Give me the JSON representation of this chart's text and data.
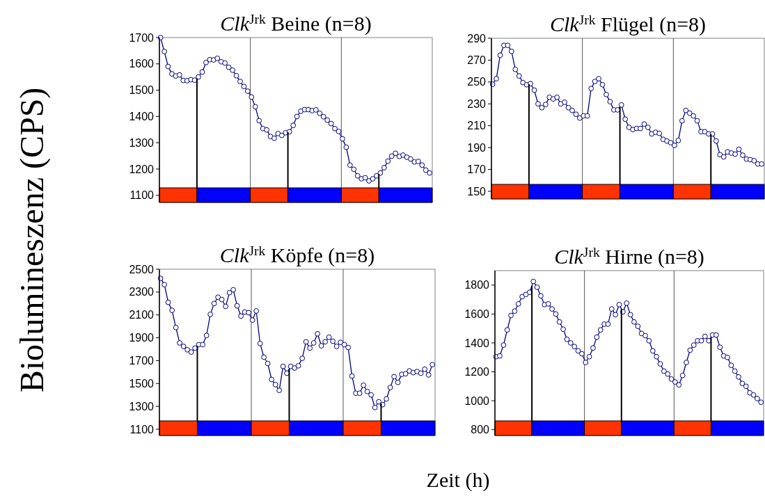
{
  "chart_data": [
    {
      "type": "line",
      "title": "Clk$^{Jrk}$ Beine (n=8)",
      "ylabel": "Biolumineszenz (CPS)",
      "categories": [
        null,
        null,
        null,
        null,
        null,
        null,
        null,
        null,
        null,
        null,
        null,
        null,
        null,
        null,
        null,
        null,
        null,
        null,
        null,
        null,
        null,
        null,
        null,
        null,
        null,
        null,
        null,
        null,
        null,
        null,
        null,
        null,
        null,
        null,
        null,
        null,
        null,
        null,
        null,
        null,
        null,
        null,
        null,
        null,
        null,
        null,
        null,
        null,
        null,
        null,
        null,
        null,
        null,
        null,
        null,
        null,
        null,
        null,
        null,
        null,
        null,
        null,
        null,
        null,
        null,
        null,
        null,
        null,
        null,
        null,
        null,
        null
      ],
      "series": [
        {
          "color": "#000080",
          "values": [
            1700,
            1647,
            1590,
            1562,
            1554,
            1558,
            1537,
            1536,
            1540,
            1538,
            1550,
            1569,
            1605,
            1616,
            1615,
            1621,
            1608,
            1603,
            1587,
            1576,
            1555,
            1533,
            1514,
            1496,
            1474,
            1437,
            1384,
            1354,
            1349,
            1324,
            1317,
            1335,
            1328,
            1338,
            1342,
            1366,
            1400,
            1420,
            1426,
            1426,
            1422,
            1425,
            1412,
            1399,
            1386,
            1373,
            1354,
            1343,
            1315,
            1283,
            1215,
            1199,
            1174,
            1163,
            1167,
            1155,
            1163,
            1174,
            1185,
            1205,
            1230,
            1249,
            1260,
            1248,
            1253,
            1245,
            1238,
            1227,
            1229,
            1215,
            1196,
            1185
          ]
        }
      ],
      "ylim": [
        1073,
        1700
      ],
      "yticks": [
        1100,
        1200,
        1300,
        1400,
        1500,
        1600,
        1700
      ],
      "marker": "circle",
      "tick_labels": "y"
    },
    {
      "type": "line",
      "title": "Clk$^{Jrk}$ Flügel (n=8)",
      "categories": [
        null,
        null,
        null,
        null,
        null,
        null,
        null,
        null,
        null,
        null,
        null,
        null,
        null,
        null,
        null,
        null,
        null,
        null,
        null,
        null,
        null,
        null,
        null,
        null,
        null,
        null,
        null,
        null,
        null,
        null,
        null,
        null,
        null,
        null,
        null,
        null,
        null,
        null,
        null,
        null,
        null,
        null,
        null,
        null,
        null,
        null,
        null,
        null,
        null,
        null,
        null,
        null,
        null,
        null,
        null,
        null,
        null,
        null,
        null,
        null,
        null,
        null,
        null,
        null,
        null,
        null,
        null,
        null,
        null,
        null,
        null,
        null
      ],
      "series": [
        {
          "color": "#000080",
          "values": [
            248,
            253,
            274.5,
            283.5,
            283.5,
            278,
            261.5,
            255.5,
            249.5,
            247.5,
            248.5,
            242.5,
            230,
            226.5,
            229.5,
            236,
            234.5,
            236,
            230,
            231.5,
            226.5,
            224,
            220.5,
            217,
            219,
            219,
            244,
            250.5,
            253,
            247.5,
            238.5,
            232,
            224.5,
            224.5,
            229,
            216,
            208.5,
            206.5,
            207.5,
            207.5,
            211.5,
            208.5,
            202.5,
            204,
            203,
            197.5,
            196,
            194.5,
            192,
            196.5,
            214.5,
            224,
            221.5,
            219,
            214.5,
            204.5,
            204.5,
            202.5,
            202.5,
            196,
            183.5,
            181.5,
            186,
            185,
            184,
            188.5,
            183,
            179.5,
            179,
            178,
            175,
            175
          ]
        }
      ],
      "ylim": [
        143,
        290
      ],
      "yticks": [
        150,
        170,
        190,
        210,
        230,
        250,
        270,
        290
      ],
      "marker": "circle",
      "tick_labels": "y"
    },
    {
      "type": "line",
      "title": "Clk$^{Jrk}$ Köpfe (n=8)",
      "xlabel": "Zeit (h)",
      "categories": [
        null,
        null,
        null,
        null,
        null,
        null,
        null,
        null,
        null,
        null,
        null,
        null,
        null,
        null,
        null,
        null,
        null,
        null,
        null,
        null,
        null,
        null,
        null,
        null,
        null,
        null,
        null,
        null,
        null,
        null,
        null,
        null,
        null,
        null,
        null,
        null,
        null,
        null,
        null,
        null,
        null,
        null,
        null,
        null,
        null,
        null,
        null,
        null,
        null,
        null,
        null,
        null,
        null,
        null,
        null,
        null,
        null,
        null,
        null,
        null,
        null,
        null,
        null,
        null,
        null,
        null,
        null,
        null,
        null,
        null,
        null,
        null
      ],
      "series": [
        {
          "color": "#000080",
          "values": [
            2420,
            2365,
            2210,
            2140,
            1990,
            1855,
            1825,
            1795,
            1775,
            1810,
            1840,
            1840,
            1920,
            2105,
            2200,
            2255,
            2235,
            2175,
            2295,
            2320,
            2180,
            2090,
            2125,
            2120,
            2055,
            2135,
            1850,
            1730,
            1675,
            1535,
            1490,
            1440,
            1650,
            1590,
            1650,
            1635,
            1655,
            1720,
            1865,
            1810,
            1855,
            1935,
            1830,
            1865,
            1905,
            1870,
            1825,
            1860,
            1840,
            1815,
            1565,
            1415,
            1415,
            1485,
            1430,
            1400,
            1290,
            1340,
            1315,
            1365,
            1465,
            1560,
            1510,
            1580,
            1585,
            1610,
            1595,
            1605,
            1590,
            1625,
            1575,
            1665
          ]
        }
      ],
      "ylim": [
        1045,
        2500
      ],
      "yticks": [
        1100,
        1300,
        1500,
        1700,
        1900,
        2100,
        2300,
        2500
      ],
      "marker": "circle",
      "tick_labels": "y"
    },
    {
      "type": "line",
      "title": "Clk$^{Jrk}$ Hirne (n=8)",
      "categories": [
        null,
        null,
        null,
        null,
        null,
        null,
        null,
        null,
        null,
        null,
        null,
        null,
        null,
        null,
        null,
        null,
        null,
        null,
        null,
        null,
        null,
        null,
        null,
        null,
        null,
        null,
        null,
        null,
        null,
        null,
        null,
        null,
        null,
        null,
        null,
        null,
        null,
        null,
        null,
        null,
        null,
        null,
        null,
        null,
        null,
        null,
        null,
        null,
        null,
        null,
        null,
        null,
        null,
        null,
        null,
        null,
        null,
        null,
        null,
        null,
        null,
        null,
        null,
        null,
        null,
        null,
        null,
        null,
        null,
        null,
        null,
        null
      ],
      "series": [
        {
          "color": "#000080",
          "values": [
            1305,
            1310,
            1385,
            1490,
            1590,
            1620,
            1670,
            1720,
            1735,
            1750,
            1825,
            1785,
            1725,
            1665,
            1670,
            1635,
            1600,
            1545,
            1495,
            1425,
            1400,
            1375,
            1345,
            1325,
            1265,
            1305,
            1365,
            1440,
            1490,
            1530,
            1530,
            1635,
            1595,
            1665,
            1615,
            1675,
            1595,
            1545,
            1515,
            1465,
            1450,
            1415,
            1345,
            1305,
            1255,
            1205,
            1185,
            1150,
            1130,
            1110,
            1175,
            1265,
            1350,
            1385,
            1415,
            1415,
            1445,
            1415,
            1455,
            1455,
            1370,
            1310,
            1300,
            1245,
            1205,
            1165,
            1120,
            1100,
            1055,
            1040,
            1015,
            990
          ]
        }
      ],
      "ylim": [
        760,
        1900
      ],
      "yticks": [
        800,
        1000,
        1200,
        1400,
        1600,
        1800
      ],
      "marker": "circle",
      "tick_labels": "y"
    }
  ]
}
